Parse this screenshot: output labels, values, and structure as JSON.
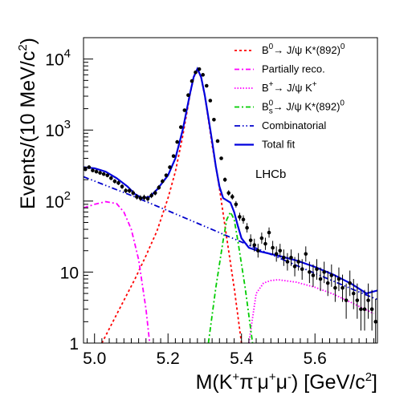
{
  "chart_data": {
    "type": "line",
    "xlabel": {
      "pre": "M(K",
      "s1": "+",
      "m1": "π",
      "s2": "-",
      "m2": "μ",
      "s3": "+",
      "m3": "μ",
      "s4": "-",
      "post": ") [GeV/c",
      "s5": "2",
      "end": "]"
    },
    "ylabel": {
      "pre": "Events/(10 MeV/c",
      "sup": "2",
      "post": ")"
    },
    "xlim": [
      4.97,
      5.77
    ],
    "ylim": [
      1,
      20000
    ],
    "yscale": "log",
    "x_ticks": [
      5.0,
      5.2,
      5.4,
      5.6
    ],
    "x_tick_labels": [
      "5.0",
      "5.2",
      "5.4",
      "5.6"
    ],
    "y_ticks": [
      {
        "value": 1,
        "base": "1",
        "exp": ""
      },
      {
        "value": 10,
        "base": "10",
        "exp": ""
      },
      {
        "value": 100,
        "base": "10",
        "exp": "2"
      },
      {
        "value": 1000,
        "base": "10",
        "exp": "3"
      },
      {
        "value": 10000,
        "base": "10",
        "exp": "4"
      }
    ],
    "annotation": "LHCb",
    "legend_position": "top-right",
    "legend": [
      {
        "pre": "B",
        "sup": "0",
        "sub": "",
        "post": "→ J/ψ K*(892)",
        "sup2": "0"
      },
      {
        "pre": "Partially reco.",
        "sup": "",
        "sub": "",
        "post": "",
        "sup2": ""
      },
      {
        "pre": "B",
        "sup": "+",
        "sub": "",
        "post": "→ J/ψ K",
        "sup2": "+"
      },
      {
        "pre": "B",
        "sup": "0",
        "sub": "s",
        "post": "→ J/ψ K*(892)",
        "sup2": "0"
      },
      {
        "pre": "Combinatorial",
        "sup": "",
        "sub": "",
        "post": "",
        "sup2": ""
      },
      {
        "pre": "Total fit",
        "sup": "",
        "sub": "",
        "post": "",
        "sup2": ""
      }
    ],
    "series": [
      {
        "color": "#ff0000",
        "dash": "3,3",
        "x": [
          5.02,
          5.05,
          5.08,
          5.11,
          5.14,
          5.17,
          5.2,
          5.22,
          5.24,
          5.26,
          5.27,
          5.28,
          5.29,
          5.3,
          5.31,
          5.32,
          5.34,
          5.36,
          5.38,
          5.4
        ],
        "y": [
          1,
          2,
          4,
          8,
          17,
          38,
          110,
          260,
          820,
          3200,
          5500,
          7200,
          5500,
          3000,
          1400,
          620,
          150,
          30,
          6,
          1
        ]
      },
      {
        "color": "#ff00ff",
        "dash": "6,3,2,3",
        "x": [
          4.97,
          5.0,
          5.03,
          5.06,
          5.08,
          5.1,
          5.12,
          5.14,
          5.15
        ],
        "y": [
          80,
          90,
          98,
          92,
          70,
          40,
          15,
          3,
          1
        ]
      },
      {
        "color": "#ff00ff",
        "dash": "1.5,2",
        "x": [
          5.42,
          5.44,
          5.46,
          5.48,
          5.5,
          5.55,
          5.6,
          5.65,
          5.7,
          5.76
        ],
        "y": [
          1,
          5,
          7,
          7.6,
          7.8,
          7.2,
          6.1,
          4.9,
          3.7,
          2.6
        ]
      },
      {
        "color": "#00cc00",
        "dash": "6,3,2,3",
        "x": [
          5.31,
          5.33,
          5.35,
          5.36,
          5.37,
          5.38,
          5.39,
          5.41,
          5.43
        ],
        "y": [
          1,
          6,
          28,
          55,
          70,
          55,
          28,
          6,
          1
        ]
      },
      {
        "color": "#0000cc",
        "dash": "7,3,1.5,3,1.5,3",
        "x": [
          4.97,
          5.1,
          5.2,
          5.3,
          5.4,
          5.5,
          5.6,
          5.7,
          5.77
        ],
        "y": [
          220,
          120,
          73,
          44,
          26.5,
          16,
          9.6,
          5.8,
          4.1
        ]
      },
      {
        "color": "#0000dd",
        "dash": "",
        "x": [
          4.97,
          5.0,
          5.03,
          5.06,
          5.09,
          5.11,
          5.13,
          5.15,
          5.17,
          5.2,
          5.22,
          5.24,
          5.26,
          5.27,
          5.28,
          5.29,
          5.3,
          5.31,
          5.32,
          5.33,
          5.34,
          5.35,
          5.37,
          5.38,
          5.39,
          5.4,
          5.42,
          5.45,
          5.5,
          5.55,
          5.6,
          5.65,
          5.7,
          5.74,
          5.77
        ],
        "y": [
          300,
          290,
          260,
          210,
          160,
          125,
          110,
          115,
          145,
          230,
          400,
          1000,
          3300,
          5600,
          7300,
          5600,
          3100,
          1500,
          700,
          310,
          160,
          110,
          95,
          70,
          45,
          30,
          22,
          19.5,
          17,
          14.5,
          11.8,
          9.2,
          6.8,
          5,
          5.5
        ]
      }
    ],
    "data_points": {
      "x": [
        4.975,
        4.985,
        4.995,
        5.005,
        5.015,
        5.025,
        5.035,
        5.045,
        5.055,
        5.065,
        5.075,
        5.085,
        5.095,
        5.105,
        5.115,
        5.125,
        5.135,
        5.145,
        5.155,
        5.165,
        5.175,
        5.185,
        5.195,
        5.205,
        5.215,
        5.225,
        5.235,
        5.245,
        5.255,
        5.265,
        5.275,
        5.285,
        5.295,
        5.305,
        5.315,
        5.325,
        5.335,
        5.345,
        5.355,
        5.365,
        5.375,
        5.385,
        5.395,
        5.405,
        5.415,
        5.425,
        5.435,
        5.445,
        5.455,
        5.465,
        5.475,
        5.485,
        5.495,
        5.505,
        5.515,
        5.525,
        5.535,
        5.545,
        5.555,
        5.565,
        5.575,
        5.585,
        5.595,
        5.605,
        5.615,
        5.625,
        5.635,
        5.645,
        5.655,
        5.665,
        5.675,
        5.685,
        5.695,
        5.705,
        5.715,
        5.725,
        5.735,
        5.745,
        5.755,
        5.765
      ],
      "y": [
        280,
        300,
        270,
        260,
        250,
        240,
        230,
        210,
        190,
        180,
        160,
        140,
        140,
        130,
        115,
        110,
        112,
        108,
        120,
        130,
        155,
        190,
        230,
        300,
        430,
        680,
        1100,
        1900,
        3100,
        4900,
        6500,
        7200,
        6000,
        4200,
        2600,
        1400,
        700,
        400,
        200,
        130,
        115,
        90,
        60,
        55,
        42,
        28,
        24,
        20,
        30,
        25,
        36,
        22,
        18,
        20,
        16,
        14,
        16,
        12,
        14,
        11,
        18,
        10,
        9,
        11,
        8,
        10,
        7,
        9,
        6,
        8,
        6,
        4,
        7,
        5,
        4,
        3,
        3,
        4,
        3,
        2
      ],
      "err_lo": [
        15,
        16,
        15,
        15,
        15,
        14,
        14,
        13,
        13,
        12,
        12,
        11,
        11,
        10,
        10,
        10,
        10,
        10,
        10,
        10,
        11,
        13,
        14,
        16,
        20,
        25,
        33,
        43,
        55,
        70,
        80,
        84,
        77,
        65,
        51,
        37,
        26,
        20,
        14,
        11,
        10,
        9,
        7,
        7,
        6,
        5,
        4.5,
        4,
        5,
        4.5,
        5.5,
        4.5,
        4,
        4,
        3.8,
        3.5,
        3.8,
        3.3,
        3.5,
        3.2,
        4,
        3,
        2.8,
        3.2,
        2.6,
        3,
        2.4,
        2.8,
        2.2,
        2.6,
        2.2,
        1.8,
        2.4,
        2,
        1.8,
        1.5,
        1.5,
        1.8,
        1.5,
        1.1
      ],
      "err_hi": [
        17,
        18,
        17,
        17,
        16,
        16,
        15,
        15,
        14,
        14,
        13,
        12,
        12,
        12,
        11,
        11,
        11,
        11,
        11,
        12,
        13,
        14,
        16,
        18,
        21,
        27,
        34,
        45,
        57,
        71,
        81,
        86,
        78,
        66,
        52,
        38,
        27,
        21,
        15,
        12,
        11,
        10,
        8.5,
        8,
        7,
        6,
        5.5,
        5,
        6,
        5.5,
        6.5,
        5.5,
        5,
        5,
        4.8,
        4.5,
        4.8,
        4.3,
        4.5,
        4.2,
        5,
        4,
        3.8,
        4.2,
        3.6,
        4,
        3.4,
        3.8,
        3.2,
        3.6,
        3.2,
        2.9,
        3.5,
        3,
        2.9,
        2.6,
        2.6,
        2.9,
        2.6,
        2.2
      ]
    }
  }
}
